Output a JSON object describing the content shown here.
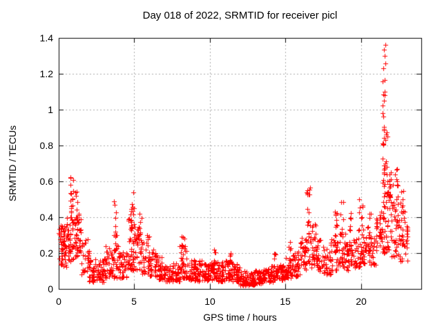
{
  "chart_data": {
    "type": "scatter",
    "title": "Day 018 of 2022, SRMTID for receiver picl",
    "xlabel": "GPS time / hours",
    "ylabel": "SRMTID / TECUs",
    "xlim": [
      0,
      24
    ],
    "ylim": [
      0,
      1.4
    ],
    "xticks": [
      0,
      5,
      10,
      15,
      20
    ],
    "xtick_labels": [
      "0",
      "5",
      "10",
      "15",
      "20"
    ],
    "yticks": [
      0,
      0.2,
      0.4,
      0.6,
      0.8,
      1,
      1.2,
      1.4
    ],
    "ytick_labels": [
      "0",
      "0.2",
      "0.4",
      "0.6",
      "0.8",
      "1",
      "1.2",
      "1.4"
    ],
    "grid": true,
    "grid_style": "dashed",
    "legend": "none",
    "marker": "plus",
    "marker_size_px": 7,
    "marker_color": "#ff0000",
    "grid_color": "#a8a8a8",
    "axis_color": "#000000",
    "background_color": "#ffffff",
    "max_point": {
      "x": 21.5,
      "y": 1.37
    },
    "min_band": {
      "x_start": 12.0,
      "x_end": 13.0,
      "y_low": 0.02,
      "y_high": 0.1
    },
    "n_points_approx": 1860,
    "seed": 20220118,
    "density_bins_columns": [
      "x_start",
      "x_end",
      "count",
      "y_min",
      "y_max"
    ],
    "density_bins": [
      [
        0.0,
        0.5,
        55,
        0.12,
        0.36
      ],
      [
        0.5,
        1.0,
        45,
        0.15,
        0.44
      ],
      [
        1.0,
        1.5,
        40,
        0.18,
        0.42
      ],
      [
        1.5,
        2.0,
        32,
        0.08,
        0.28
      ],
      [
        2.0,
        2.5,
        32,
        0.04,
        0.17
      ],
      [
        2.5,
        3.0,
        38,
        0.04,
        0.16
      ],
      [
        3.0,
        3.5,
        36,
        0.06,
        0.24
      ],
      [
        3.5,
        4.0,
        34,
        0.06,
        0.26
      ],
      [
        4.0,
        4.5,
        34,
        0.06,
        0.22
      ],
      [
        4.5,
        5.0,
        36,
        0.1,
        0.4
      ],
      [
        5.0,
        5.5,
        36,
        0.1,
        0.35
      ],
      [
        5.5,
        6.0,
        34,
        0.08,
        0.3
      ],
      [
        6.0,
        6.5,
        34,
        0.07,
        0.22
      ],
      [
        6.5,
        7.0,
        34,
        0.05,
        0.18
      ],
      [
        7.0,
        7.5,
        34,
        0.04,
        0.14
      ],
      [
        7.5,
        8.0,
        36,
        0.04,
        0.15
      ],
      [
        8.0,
        8.5,
        38,
        0.06,
        0.24
      ],
      [
        8.5,
        9.0,
        36,
        0.05,
        0.17
      ],
      [
        9.0,
        9.5,
        36,
        0.04,
        0.16
      ],
      [
        9.5,
        10.0,
        36,
        0.04,
        0.14
      ],
      [
        10.0,
        10.5,
        38,
        0.05,
        0.16
      ],
      [
        10.5,
        11.0,
        38,
        0.04,
        0.15
      ],
      [
        11.0,
        11.5,
        38,
        0.05,
        0.16
      ],
      [
        11.5,
        12.0,
        38,
        0.04,
        0.14
      ],
      [
        12.0,
        12.5,
        38,
        0.02,
        0.1
      ],
      [
        12.5,
        13.0,
        40,
        0.02,
        0.1
      ],
      [
        13.0,
        13.5,
        38,
        0.03,
        0.11
      ],
      [
        13.5,
        14.0,
        36,
        0.04,
        0.12
      ],
      [
        14.0,
        14.5,
        36,
        0.04,
        0.13
      ],
      [
        14.5,
        15.0,
        36,
        0.05,
        0.14
      ],
      [
        15.0,
        15.5,
        36,
        0.06,
        0.18
      ],
      [
        15.5,
        16.0,
        34,
        0.07,
        0.22
      ],
      [
        16.0,
        16.5,
        34,
        0.1,
        0.3
      ],
      [
        16.5,
        17.0,
        34,
        0.12,
        0.38
      ],
      [
        17.0,
        17.5,
        32,
        0.1,
        0.28
      ],
      [
        17.5,
        18.0,
        32,
        0.08,
        0.24
      ],
      [
        18.0,
        18.5,
        32,
        0.1,
        0.3
      ],
      [
        18.5,
        19.0,
        32,
        0.12,
        0.33
      ],
      [
        19.0,
        19.5,
        32,
        0.1,
        0.3
      ],
      [
        19.5,
        20.0,
        32,
        0.12,
        0.32
      ],
      [
        20.0,
        20.5,
        34,
        0.14,
        0.35
      ],
      [
        20.5,
        21.0,
        32,
        0.12,
        0.3
      ],
      [
        21.0,
        21.5,
        36,
        0.2,
        0.45
      ],
      [
        21.5,
        22.0,
        34,
        0.2,
        0.55
      ],
      [
        22.0,
        22.5,
        34,
        0.18,
        0.5
      ],
      [
        22.5,
        23.0,
        30,
        0.15,
        0.45
      ],
      [
        23.0,
        23.2,
        12,
        0.15,
        0.35
      ]
    ],
    "spike_clusters_columns": [
      "x_center",
      "x_width",
      "count",
      "y_min",
      "y_max"
    ],
    "spike_clusters": [
      [
        0.85,
        0.25,
        14,
        0.4,
        0.64
      ],
      [
        1.2,
        0.3,
        10,
        0.35,
        0.55
      ],
      [
        3.75,
        0.3,
        10,
        0.26,
        0.5
      ],
      [
        4.85,
        0.3,
        18,
        0.3,
        0.57
      ],
      [
        5.35,
        0.3,
        8,
        0.25,
        0.42
      ],
      [
        8.2,
        0.25,
        8,
        0.2,
        0.34
      ],
      [
        10.3,
        0.15,
        3,
        0.16,
        0.23
      ],
      [
        11.3,
        0.2,
        4,
        0.15,
        0.21
      ],
      [
        14.3,
        0.15,
        4,
        0.15,
        0.25
      ],
      [
        15.3,
        0.2,
        6,
        0.15,
        0.28
      ],
      [
        16.55,
        0.25,
        14,
        0.35,
        0.57
      ],
      [
        18.35,
        0.2,
        8,
        0.28,
        0.45
      ],
      [
        18.75,
        0.2,
        8,
        0.3,
        0.5
      ],
      [
        19.3,
        0.15,
        6,
        0.28,
        0.46
      ],
      [
        20.0,
        0.3,
        10,
        0.3,
        0.52
      ],
      [
        20.55,
        0.2,
        6,
        0.3,
        0.45
      ],
      [
        21.5,
        0.15,
        26,
        0.5,
        1.12
      ],
      [
        21.55,
        0.18,
        8,
        1.1,
        1.37
      ],
      [
        21.75,
        0.35,
        16,
        0.45,
        0.95
      ],
      [
        22.0,
        0.25,
        10,
        0.45,
        0.7
      ],
      [
        22.35,
        0.2,
        10,
        0.45,
        0.68
      ],
      [
        22.7,
        0.2,
        6,
        0.45,
        0.6
      ]
    ]
  }
}
